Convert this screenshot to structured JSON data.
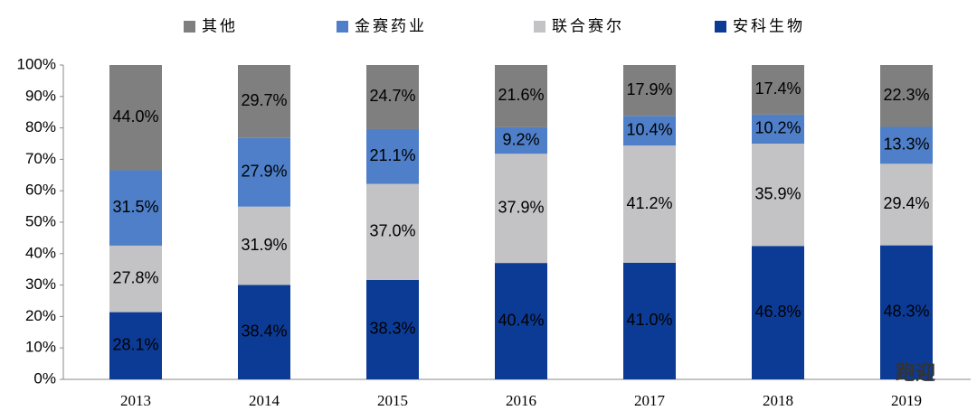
{
  "chart_data": {
    "type": "bar",
    "stacking": "percent",
    "categories": [
      "2013",
      "2014",
      "2015",
      "2016",
      "2017",
      "2018",
      "2019"
    ],
    "series": [
      {
        "name": "安科生物",
        "color": "#0c3b96",
        "values": [
          28.1,
          38.4,
          38.3,
          40.4,
          41.0,
          46.8,
          48.3
        ],
        "value_labels": [
          "28.1%",
          "38.4%",
          "38.3%",
          "40.4%",
          "41.0%",
          "46.8%",
          "48.3%"
        ]
      },
      {
        "name": "联合赛尔",
        "color": "#c3c3c5",
        "values": [
          27.8,
          31.9,
          37.0,
          37.9,
          41.2,
          35.9,
          29.4
        ],
        "value_labels": [
          "27.8%",
          "31.9%",
          "37.0%",
          "37.9%",
          "41.2%",
          "35.9%",
          "29.4%"
        ]
      },
      {
        "name": "金赛药业",
        "color": "#4e7fc8",
        "values": [
          31.5,
          27.9,
          21.1,
          9.2,
          10.4,
          10.2,
          13.3
        ],
        "value_labels": [
          "31.5%",
          "27.9%",
          "21.1%",
          "9.2%",
          "10.4%",
          "10.2%",
          "13.3%"
        ]
      },
      {
        "name": "其他",
        "color": "#7f7f7f",
        "values": [
          44.0,
          29.7,
          24.7,
          21.6,
          17.9,
          17.4,
          22.3
        ],
        "value_labels": [
          "44.0%",
          "29.7%",
          "24.7%",
          "21.6%",
          "17.9%",
          "17.4%",
          "22.3%"
        ]
      }
    ],
    "ylim": [
      0,
      100
    ],
    "yticks": [
      {
        "value": 0,
        "label": "0%"
      },
      {
        "value": 10,
        "label": "10%"
      },
      {
        "value": 20,
        "label": "20%"
      },
      {
        "value": 30,
        "label": "30%"
      },
      {
        "value": 40,
        "label": "40%"
      },
      {
        "value": 50,
        "label": "50%"
      },
      {
        "value": 60,
        "label": "60%"
      },
      {
        "value": 70,
        "label": "70%"
      },
      {
        "value": 80,
        "label": "80%"
      },
      {
        "value": 90,
        "label": "90%"
      },
      {
        "value": 100,
        "label": "100%"
      }
    ],
    "legend": "top",
    "grid": false
  },
  "watermark": "跑迎"
}
